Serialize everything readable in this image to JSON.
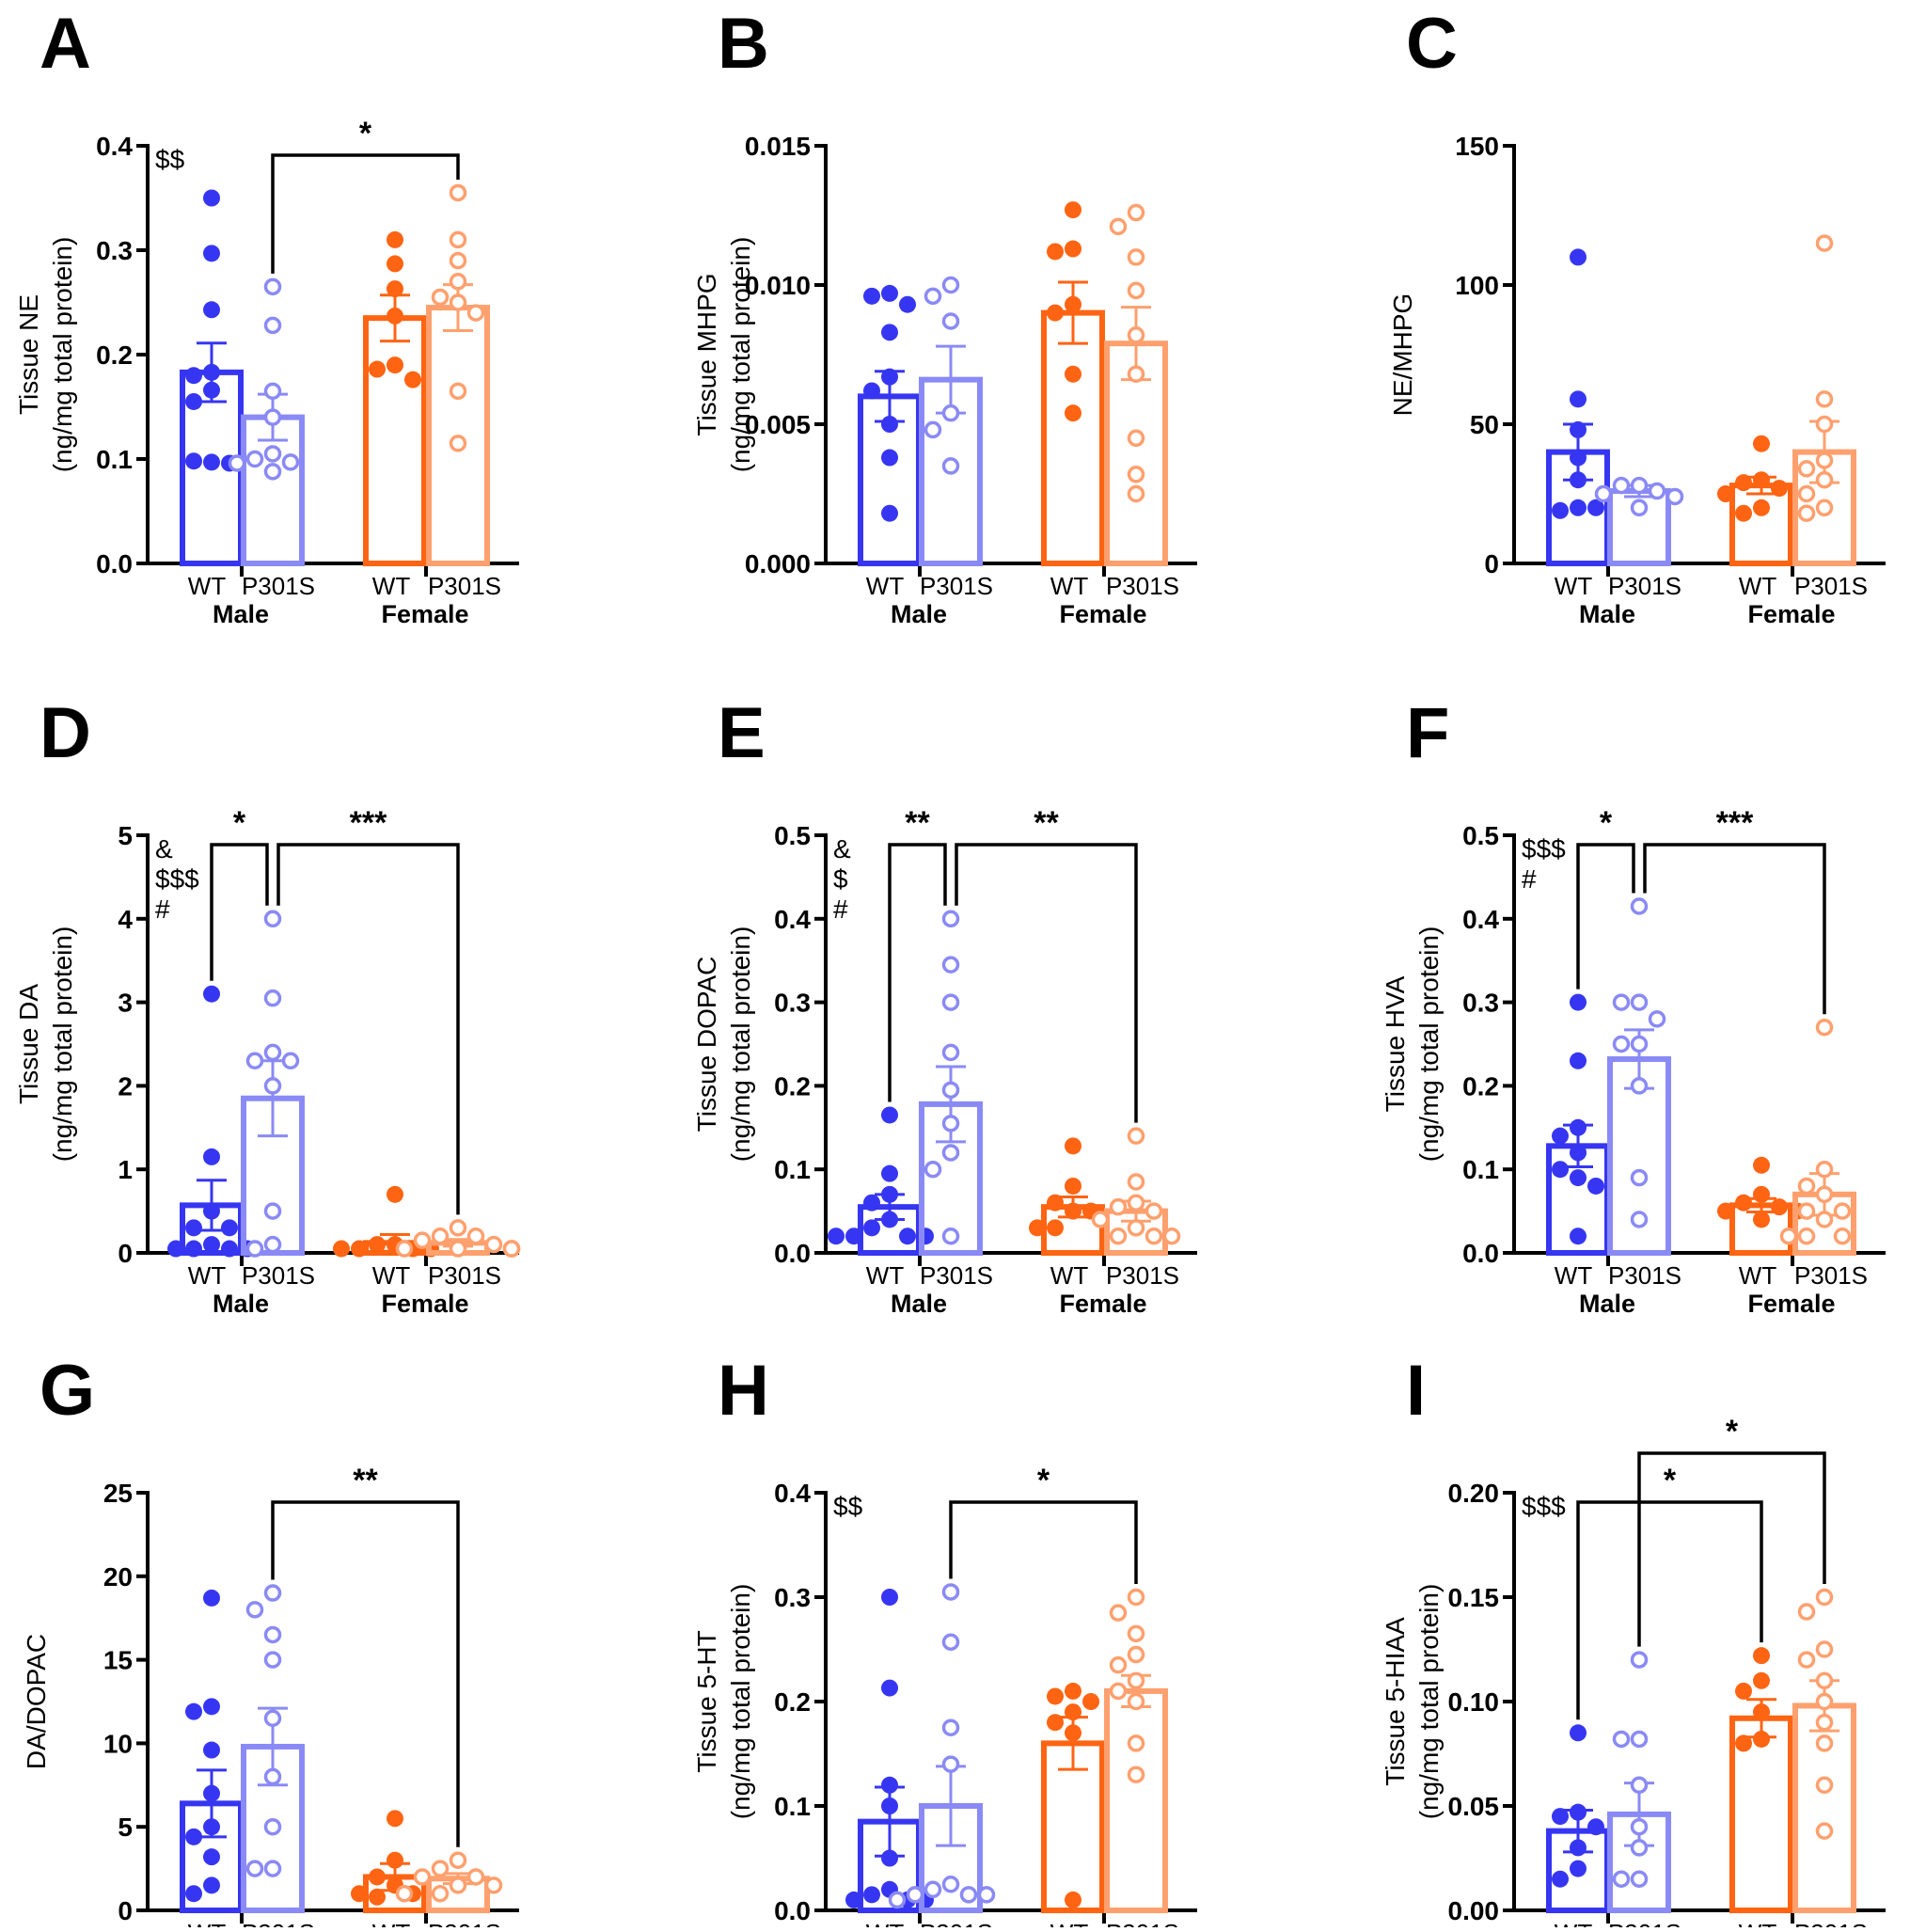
{
  "colors": {
    "male_wt": "#3636f2",
    "male_p301s": "#8a8af6",
    "female_wt": "#ff6412",
    "female_p301s": "#ffa06e",
    "axis": "#000000"
  },
  "group_labels": [
    "WT",
    "P301S",
    "WT",
    "P301S"
  ],
  "sex_labels": [
    "Male",
    "Female"
  ],
  "chart_data": [
    {
      "panel": "A",
      "type": "bar",
      "ylabel": [
        "Tissue NE",
        "(ng/mg total protein)"
      ],
      "ylim": [
        0,
        0.4
      ],
      "ticks": [
        0,
        0.1,
        0.2,
        0.3,
        0.4
      ],
      "tick_labels": [
        "0.0",
        "0.1",
        "0.2",
        "0.3",
        "0.4"
      ],
      "groups": [
        {
          "mean": 0.183,
          "sem": 0.028,
          "points": [
            0.35,
            0.297,
            0.243,
            0.183,
            0.18,
            0.166,
            0.155,
            0.097,
            0.098,
            0.096
          ]
        },
        {
          "mean": 0.14,
          "sem": 0.022,
          "points": [
            0.265,
            0.228,
            0.165,
            0.14,
            0.105,
            0.1,
            0.097,
            0.096,
            0.088
          ]
        },
        {
          "mean": 0.235,
          "sem": 0.022,
          "points": [
            0.31,
            0.287,
            0.263,
            0.237,
            0.19,
            0.186,
            0.176
          ]
        },
        {
          "mean": 0.245,
          "sem": 0.022,
          "points": [
            0.355,
            0.31,
            0.29,
            0.27,
            0.255,
            0.25,
            0.24,
            0.165,
            0.115
          ]
        }
      ],
      "stats": [
        "$$"
      ],
      "brackets": [
        {
          "from": 1,
          "to": 3,
          "label": "*",
          "tier": 0
        }
      ]
    },
    {
      "panel": "B",
      "type": "bar",
      "ylabel": [
        "Tissue MHPG",
        "(ng/mg total protein)"
      ],
      "ylim": [
        0,
        0.015
      ],
      "ticks": [
        0,
        0.005,
        0.01,
        0.015
      ],
      "tick_labels": [
        "0.000",
        "0.005",
        "0.010",
        "0.015"
      ],
      "groups": [
        {
          "mean": 0.006,
          "sem": 0.0009,
          "points": [
            0.0097,
            0.0096,
            0.0093,
            0.0083,
            0.0067,
            0.0062,
            0.005,
            0.0038,
            0.0018
          ]
        },
        {
          "mean": 0.0066,
          "sem": 0.0012,
          "points": [
            0.01,
            0.0096,
            0.0087,
            0.0054,
            0.0048,
            0.0035
          ]
        },
        {
          "mean": 0.009,
          "sem": 0.0011,
          "points": [
            0.0127,
            0.0113,
            0.0112,
            0.0093,
            0.009,
            0.0068,
            0.0054
          ]
        },
        {
          "mean": 0.0079,
          "sem": 0.0013,
          "points": [
            0.0126,
            0.0121,
            0.011,
            0.0098,
            0.0082,
            0.0068,
            0.0045,
            0.0032,
            0.0025
          ]
        }
      ],
      "stats": [],
      "brackets": []
    },
    {
      "panel": "C",
      "type": "bar",
      "ylabel": [
        "NE/MHPG"
      ],
      "ylim": [
        0,
        150
      ],
      "ticks": [
        0,
        50,
        100,
        150
      ],
      "tick_labels": [
        "0",
        "50",
        "100",
        "150"
      ],
      "groups": [
        {
          "mean": 40,
          "sem": 10,
          "points": [
            110,
            59,
            48,
            38,
            30,
            20,
            19,
            20
          ]
        },
        {
          "mean": 26,
          "sem": 2,
          "points": [
            28,
            28,
            26,
            25,
            24,
            20
          ]
        },
        {
          "mean": 28,
          "sem": 3,
          "points": [
            43,
            30,
            29,
            27,
            25,
            20,
            18
          ]
        },
        {
          "mean": 40,
          "sem": 11,
          "points": [
            115,
            59,
            50,
            37,
            34,
            30,
            25,
            20,
            18
          ]
        }
      ],
      "stats": [],
      "brackets": []
    },
    {
      "panel": "D",
      "type": "bar",
      "ylabel": [
        "Tissue DA",
        "(ng/mg total protein)"
      ],
      "ylim": [
        0,
        5
      ],
      "ticks": [
        0,
        1,
        2,
        3,
        4,
        5
      ],
      "tick_labels": [
        "0",
        "1",
        "2",
        "3",
        "4",
        "5"
      ],
      "groups": [
        {
          "mean": 0.57,
          "sem": 0.3,
          "points": [
            3.1,
            1.15,
            0.5,
            0.3,
            0.3,
            0.1,
            0.05,
            0.05,
            0.05,
            0.05
          ]
        },
        {
          "mean": 1.85,
          "sem": 0.45,
          "points": [
            4.0,
            3.05,
            2.4,
            2.3,
            2.3,
            2.0,
            0.5,
            0.1,
            0.05
          ]
        },
        {
          "mean": 0.12,
          "sem": 0.1,
          "points": [
            0.7,
            0.1,
            0.1,
            0.05,
            0.05,
            0.05,
            0.05
          ]
        },
        {
          "mean": 0.12,
          "sem": 0.04,
          "points": [
            0.3,
            0.2,
            0.2,
            0.15,
            0.1,
            0.05,
            0.05,
            0.05,
            0.05,
            0.05
          ]
        }
      ],
      "stats": [
        "&",
        "$$$",
        "#"
      ],
      "brackets": [
        {
          "from": 0,
          "to": 1,
          "label": "*",
          "tier": 0
        },
        {
          "from": 1,
          "to": 3,
          "label": "***",
          "tier": 0
        }
      ]
    },
    {
      "panel": "E",
      "type": "bar",
      "ylabel": [
        "Tissue DOPAC",
        "(ng/mg total protein)"
      ],
      "ylim": [
        0,
        0.5
      ],
      "ticks": [
        0,
        0.1,
        0.2,
        0.3,
        0.4,
        0.5
      ],
      "tick_labels": [
        "0.0",
        "0.1",
        "0.2",
        "0.3",
        "0.4",
        "0.5"
      ],
      "groups": [
        {
          "mean": 0.055,
          "sem": 0.015,
          "points": [
            0.165,
            0.095,
            0.07,
            0.06,
            0.04,
            0.03,
            0.02,
            0.02,
            0.02,
            0.02
          ]
        },
        {
          "mean": 0.178,
          "sem": 0.045,
          "points": [
            0.4,
            0.345,
            0.3,
            0.24,
            0.195,
            0.155,
            0.12,
            0.1,
            0.02
          ]
        },
        {
          "mean": 0.055,
          "sem": 0.012,
          "points": [
            0.128,
            0.08,
            0.06,
            0.05,
            0.05,
            0.03,
            0.03
          ]
        },
        {
          "mean": 0.05,
          "sem": 0.012,
          "points": [
            0.14,
            0.085,
            0.06,
            0.055,
            0.05,
            0.04,
            0.03,
            0.02,
            0.02,
            0.02
          ]
        }
      ],
      "stats": [
        "&",
        "$",
        "#"
      ],
      "brackets": [
        {
          "from": 0,
          "to": 1,
          "label": "**",
          "tier": 0
        },
        {
          "from": 1,
          "to": 3,
          "label": "**",
          "tier": 0
        }
      ]
    },
    {
      "panel": "F",
      "type": "bar",
      "ylabel": [
        "Tissue HVA",
        "(ng/mg total protein)"
      ],
      "ylim": [
        0,
        0.5
      ],
      "ticks": [
        0,
        0.1,
        0.2,
        0.3,
        0.4,
        0.5
      ],
      "tick_labels": [
        "0.0",
        "0.1",
        "0.2",
        "0.3",
        "0.4",
        "0.5"
      ],
      "groups": [
        {
          "mean": 0.128,
          "sem": 0.025,
          "points": [
            0.3,
            0.23,
            0.15,
            0.14,
            0.12,
            0.1,
            0.09,
            0.08,
            0.02
          ]
        },
        {
          "mean": 0.232,
          "sem": 0.035,
          "points": [
            0.415,
            0.3,
            0.3,
            0.28,
            0.25,
            0.25,
            0.2,
            0.09,
            0.04
          ]
        },
        {
          "mean": 0.057,
          "sem": 0.008,
          "points": [
            0.105,
            0.07,
            0.06,
            0.055,
            0.05,
            0.05,
            0.04
          ]
        },
        {
          "mean": 0.07,
          "sem": 0.025,
          "points": [
            0.27,
            0.1,
            0.08,
            0.07,
            0.05,
            0.05,
            0.04,
            0.02,
            0.02,
            0.02
          ]
        }
      ],
      "stats": [
        "$$$",
        "#"
      ],
      "brackets": [
        {
          "from": 0,
          "to": 1,
          "label": "*",
          "tier": 0
        },
        {
          "from": 1,
          "to": 3,
          "label": "***",
          "tier": 0
        }
      ]
    },
    {
      "panel": "G",
      "type": "bar",
      "ylabel": [
        "DA/DOPAC"
      ],
      "ylim": [
        0,
        25
      ],
      "ticks": [
        0,
        5,
        10,
        15,
        20,
        25
      ],
      "tick_labels": [
        "0",
        "5",
        "10",
        "15",
        "20",
        "25"
      ],
      "groups": [
        {
          "mean": 6.4,
          "sem": 2,
          "points": [
            18.7,
            12.2,
            11.9,
            9.6,
            7,
            5,
            4.4,
            3.2,
            1.5,
            1
          ]
        },
        {
          "mean": 9.8,
          "sem": 2.3,
          "points": [
            19,
            18,
            16.5,
            15,
            11.5,
            8,
            5,
            2.5,
            2.5
          ]
        },
        {
          "mean": 2,
          "sem": 0.8,
          "points": [
            5.5,
            3,
            2,
            1.5,
            1,
            1,
            0.8
          ]
        },
        {
          "mean": 1.9,
          "sem": 0.3,
          "points": [
            3,
            2.5,
            2,
            2,
            1.5,
            1.5,
            1,
            1
          ]
        }
      ],
      "stats": [],
      "brackets": [
        {
          "from": 1,
          "to": 3,
          "label": "**",
          "tier": 0
        }
      ]
    },
    {
      "panel": "H",
      "type": "bar",
      "ylabel": [
        "Tissue 5-HT",
        "(ng/mg total protein)"
      ],
      "ylim": [
        0,
        0.4
      ],
      "ticks": [
        0,
        0.1,
        0.2,
        0.3,
        0.4
      ],
      "tick_labels": [
        "0.0",
        "0.1",
        "0.2",
        "0.3",
        "0.4"
      ],
      "groups": [
        {
          "mean": 0.085,
          "sem": 0.033,
          "points": [
            0.3,
            0.213,
            0.12,
            0.1,
            0.05,
            0.02,
            0.015,
            0.01,
            0.01,
            0.01
          ]
        },
        {
          "mean": 0.1,
          "sem": 0.038,
          "points": [
            0.305,
            0.257,
            0.175,
            0.14,
            0.025,
            0.02,
            0.015,
            0.015,
            0.015,
            0.01
          ]
        },
        {
          "mean": 0.16,
          "sem": 0.025,
          "points": [
            0.21,
            0.205,
            0.2,
            0.19,
            0.18,
            0.17,
            0.01
          ]
        },
        {
          "mean": 0.21,
          "sem": 0.015,
          "points": [
            0.3,
            0.285,
            0.265,
            0.245,
            0.235,
            0.22,
            0.21,
            0.2,
            0.16,
            0.13
          ]
        }
      ],
      "stats": [
        "$$"
      ],
      "brackets": [
        {
          "from": 1,
          "to": 3,
          "label": "*",
          "tier": 0
        }
      ]
    },
    {
      "panel": "I",
      "type": "bar",
      "ylabel": [
        "Tissue 5-HIAA",
        "(ng/mg total protein)"
      ],
      "ylim": [
        0,
        0.2
      ],
      "ticks": [
        0,
        0.05,
        0.1,
        0.15,
        0.2
      ],
      "tick_labels": [
        "0.00",
        "0.05",
        "0.10",
        "0.15",
        "0.20"
      ],
      "groups": [
        {
          "mean": 0.038,
          "sem": 0.01,
          "points": [
            0.085,
            0.047,
            0.045,
            0.04,
            0.03,
            0.02,
            0.015
          ]
        },
        {
          "mean": 0.046,
          "sem": 0.015,
          "points": [
            0.12,
            0.082,
            0.082,
            0.06,
            0.04,
            0.03,
            0.015,
            0.015
          ]
        },
        {
          "mean": 0.092,
          "sem": 0.009,
          "points": [
            0.122,
            0.11,
            0.105,
            0.095,
            0.082,
            0.08
          ]
        },
        {
          "mean": 0.098,
          "sem": 0.012,
          "points": [
            0.15,
            0.143,
            0.125,
            0.12,
            0.11,
            0.1,
            0.09,
            0.08,
            0.06,
            0.038
          ]
        }
      ],
      "stats": [
        "$$$"
      ],
      "brackets": [
        {
          "from": 0,
          "to": 2,
          "label": "*",
          "tier": 0
        },
        {
          "from": 1,
          "to": 3,
          "label": "*",
          "tier": 1
        }
      ]
    }
  ]
}
